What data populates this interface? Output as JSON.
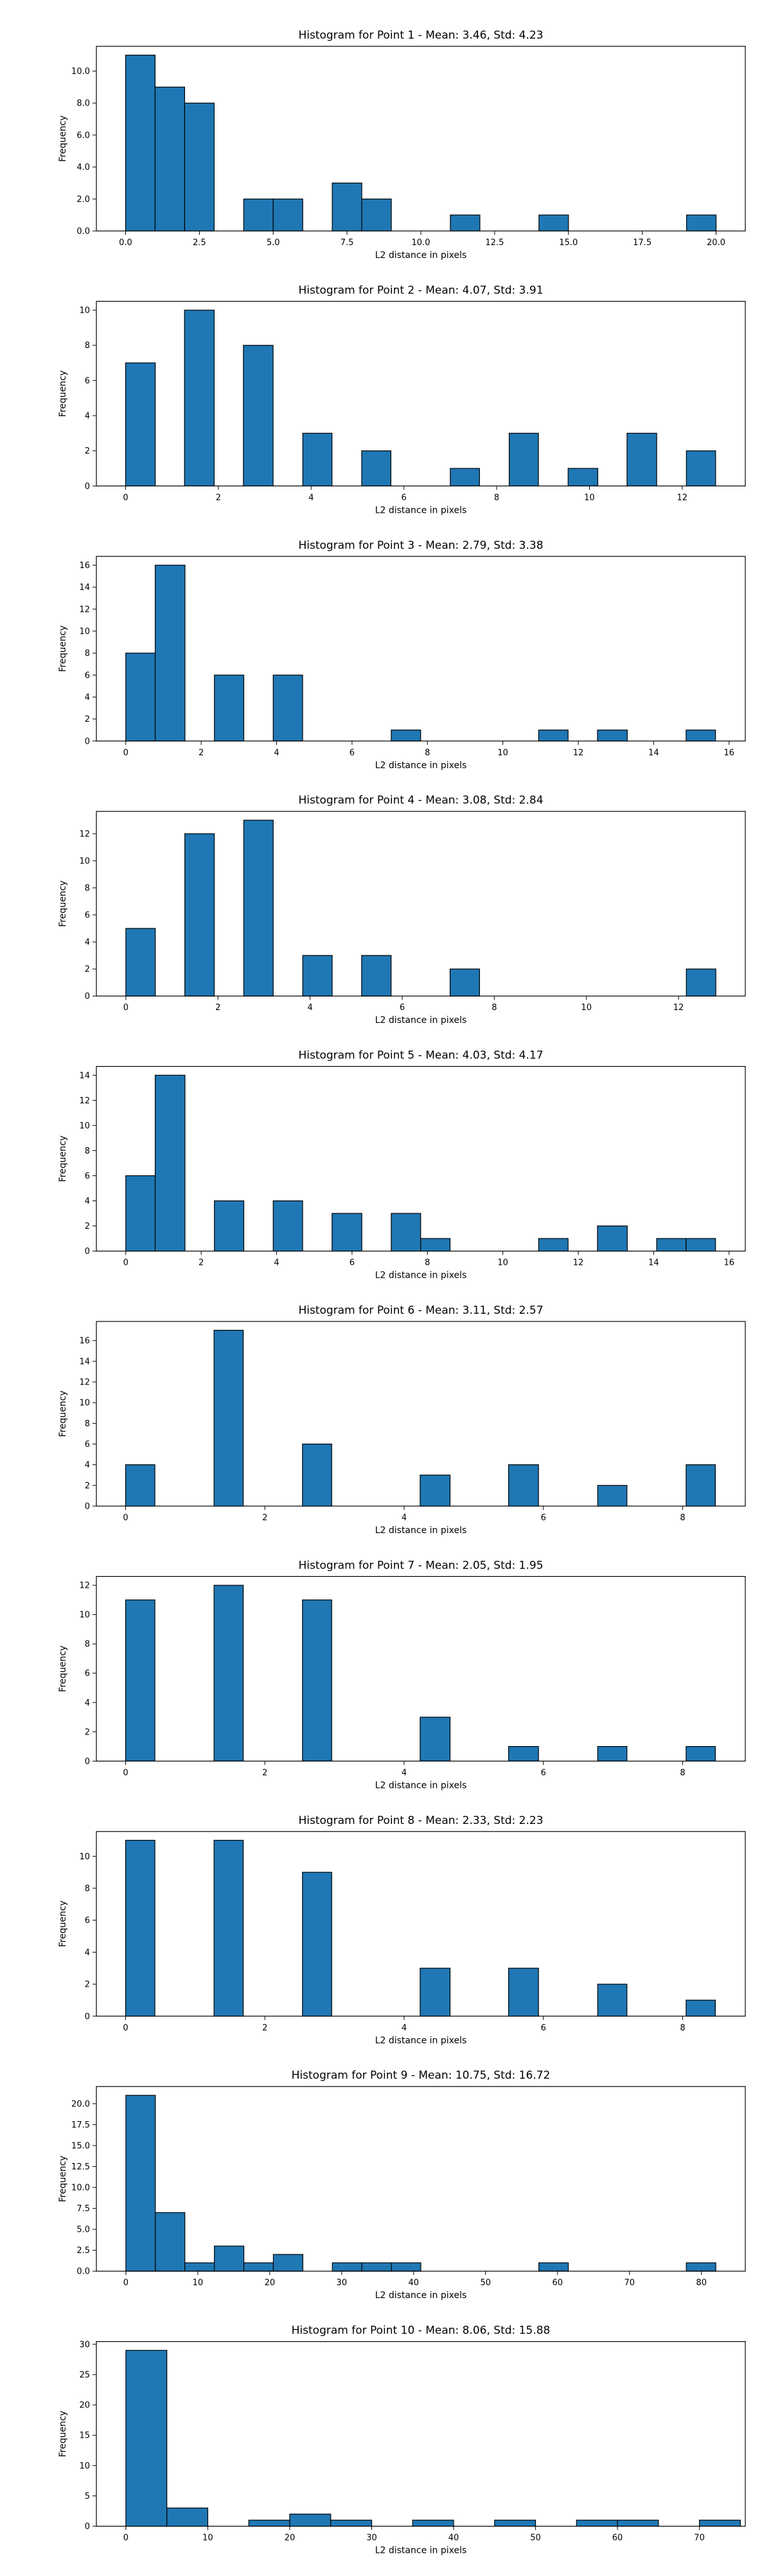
{
  "chart_data": [
    {
      "type": "bar",
      "title": "Histogram for Point 1 - Mean: 3.46, Std: 4.23",
      "xlabel": "L2 distance in pixels",
      "ylabel": "Frequency",
      "xlim": [
        -0.99,
        20.99
      ],
      "ylim": [
        0,
        11.55
      ],
      "xticks": [
        0,
        2.5,
        5,
        7.5,
        10,
        12.5,
        15,
        17.5,
        20
      ],
      "xtick_labels": [
        "0.0",
        "2.5",
        "5.0",
        "7.5",
        "10.0",
        "12.5",
        "15.0",
        "17.5",
        "20.0"
      ],
      "yticks": [
        0,
        2,
        4,
        6,
        8,
        10
      ],
      "yfrac": 1,
      "bins": [
        {
          "x0": 0.0,
          "x1": 1.0,
          "count": 11
        },
        {
          "x0": 1.0,
          "x1": 2.0,
          "count": 9
        },
        {
          "x0": 2.0,
          "x1": 3.0,
          "count": 8
        },
        {
          "x0": 4.0,
          "x1": 5.0,
          "count": 2
        },
        {
          "x0": 5.0,
          "x1": 6.0,
          "count": 2
        },
        {
          "x0": 7.0,
          "x1": 8.0,
          "count": 3
        },
        {
          "x0": 8.0,
          "x1": 9.0,
          "count": 2
        },
        {
          "x0": 11.0,
          "x1": 12.0,
          "count": 1
        },
        {
          "x0": 14.0,
          "x1": 15.0,
          "count": 1
        },
        {
          "x0": 19.0,
          "x1": 20.0,
          "count": 1
        }
      ]
    },
    {
      "type": "bar",
      "title": "Histogram for Point 2 - Mean: 4.07, Std: 3.91",
      "xlabel": "L2 distance in pixels",
      "ylabel": "Frequency",
      "xlim": [
        -0.63,
        13.36
      ],
      "ylim": [
        0,
        10.5
      ],
      "xticks": [
        0,
        2,
        4,
        6,
        8,
        10,
        12
      ],
      "xtick_labels": [
        "0",
        "2",
        "4",
        "6",
        "8",
        "10",
        "12"
      ],
      "yticks": [
        0,
        2,
        4,
        6,
        8,
        10
      ],
      "yfrac": 0,
      "bins": [
        {
          "x0": 0.0,
          "x1": 0.64,
          "count": 7
        },
        {
          "x0": 1.27,
          "x1": 1.91,
          "count": 10
        },
        {
          "x0": 2.54,
          "x1": 3.18,
          "count": 8
        },
        {
          "x0": 3.82,
          "x1": 4.45,
          "count": 3
        },
        {
          "x0": 5.09,
          "x1": 5.72,
          "count": 2
        },
        {
          "x0": 7.0,
          "x1": 7.63,
          "count": 1
        },
        {
          "x0": 8.27,
          "x1": 8.9,
          "count": 3
        },
        {
          "x0": 9.54,
          "x1": 10.18,
          "count": 1
        },
        {
          "x0": 10.81,
          "x1": 11.45,
          "count": 3
        },
        {
          "x0": 12.09,
          "x1": 12.72,
          "count": 2
        }
      ]
    },
    {
      "type": "bar",
      "title": "Histogram for Point 3 - Mean: 2.79, Std: 3.38",
      "xlabel": "L2 distance in pixels",
      "ylabel": "Frequency",
      "xlim": [
        -0.78,
        16.43
      ],
      "ylim": [
        0,
        16.8
      ],
      "xticks": [
        0,
        2,
        4,
        6,
        8,
        10,
        12,
        14,
        16
      ],
      "xtick_labels": [
        "0",
        "2",
        "4",
        "6",
        "8",
        "10",
        "12",
        "14",
        "16"
      ],
      "yticks": [
        0,
        2,
        4,
        6,
        8,
        10,
        12,
        14,
        16
      ],
      "yfrac": 0,
      "bins": [
        {
          "x0": 0.0,
          "x1": 0.78,
          "count": 8
        },
        {
          "x0": 0.78,
          "x1": 1.57,
          "count": 16
        },
        {
          "x0": 2.35,
          "x1": 3.13,
          "count": 6
        },
        {
          "x0": 3.91,
          "x1": 4.69,
          "count": 6
        },
        {
          "x0": 7.04,
          "x1": 7.82,
          "count": 1
        },
        {
          "x0": 10.95,
          "x1": 11.73,
          "count": 1
        },
        {
          "x0": 12.51,
          "x1": 13.3,
          "count": 1
        },
        {
          "x0": 14.86,
          "x1": 15.64,
          "count": 1
        }
      ]
    },
    {
      "type": "bar",
      "title": "Histogram for Point 4 - Mean: 3.08, Std: 2.84",
      "xlabel": "L2 distance in pixels",
      "ylabel": "Frequency",
      "xlim": [
        -0.64,
        13.45
      ],
      "ylim": [
        0,
        13.65
      ],
      "xticks": [
        0,
        2,
        4,
        6,
        8,
        10,
        12
      ],
      "xtick_labels": [
        "0",
        "2",
        "4",
        "6",
        "8",
        "10",
        "12"
      ],
      "yticks": [
        0,
        2,
        4,
        6,
        8,
        10,
        12
      ],
      "yfrac": 0,
      "bins": [
        {
          "x0": 0.0,
          "x1": 0.64,
          "count": 5
        },
        {
          "x0": 1.28,
          "x1": 1.92,
          "count": 12
        },
        {
          "x0": 2.56,
          "x1": 3.2,
          "count": 13
        },
        {
          "x0": 3.84,
          "x1": 4.48,
          "count": 3
        },
        {
          "x0": 5.12,
          "x1": 5.76,
          "count": 3
        },
        {
          "x0": 7.04,
          "x1": 7.68,
          "count": 2
        },
        {
          "x0": 12.17,
          "x1": 12.81,
          "count": 2
        }
      ]
    },
    {
      "type": "bar",
      "title": "Histogram for Point 5 - Mean: 4.03, Std: 4.17",
      "xlabel": "L2 distance in pixels",
      "ylabel": "Frequency",
      "xlim": [
        -0.78,
        16.43
      ],
      "ylim": [
        0,
        14.7
      ],
      "xticks": [
        0,
        2,
        4,
        6,
        8,
        10,
        12,
        14,
        16
      ],
      "xtick_labels": [
        "0",
        "2",
        "4",
        "6",
        "8",
        "10",
        "12",
        "14",
        "16"
      ],
      "yticks": [
        0,
        2,
        4,
        6,
        8,
        10,
        12,
        14
      ],
      "yfrac": 0,
      "bins": [
        {
          "x0": 0.0,
          "x1": 0.78,
          "count": 6
        },
        {
          "x0": 0.78,
          "x1": 1.57,
          "count": 14
        },
        {
          "x0": 2.35,
          "x1": 3.13,
          "count": 4
        },
        {
          "x0": 3.91,
          "x1": 4.69,
          "count": 4
        },
        {
          "x0": 5.47,
          "x1": 6.26,
          "count": 3
        },
        {
          "x0": 7.04,
          "x1": 7.82,
          "count": 3
        },
        {
          "x0": 7.82,
          "x1": 8.6,
          "count": 1
        },
        {
          "x0": 10.95,
          "x1": 11.73,
          "count": 1
        },
        {
          "x0": 12.51,
          "x1": 13.3,
          "count": 2
        },
        {
          "x0": 14.08,
          "x1": 14.86,
          "count": 1
        },
        {
          "x0": 14.86,
          "x1": 15.64,
          "count": 1
        }
      ]
    },
    {
      "type": "bar",
      "title": "Histogram for Point 6 - Mean: 3.11, Std: 2.57",
      "xlabel": "L2 distance in pixels",
      "ylabel": "Frequency",
      "xlim": [
        -0.42,
        8.9
      ],
      "ylim": [
        0,
        17.85
      ],
      "xticks": [
        0,
        2,
        4,
        6,
        8
      ],
      "xtick_labels": [
        "0",
        "2",
        "4",
        "6",
        "8"
      ],
      "yticks": [
        0,
        2,
        4,
        6,
        8,
        10,
        12,
        14,
        16
      ],
      "yfrac": 0,
      "bins": [
        {
          "x0": 0.0,
          "x1": 0.42,
          "count": 4
        },
        {
          "x0": 1.27,
          "x1": 1.69,
          "count": 17
        },
        {
          "x0": 2.54,
          "x1": 2.96,
          "count": 6
        },
        {
          "x0": 4.23,
          "x1": 4.66,
          "count": 3
        },
        {
          "x0": 5.5,
          "x1": 5.93,
          "count": 4
        },
        {
          "x0": 6.78,
          "x1": 7.2,
          "count": 2
        },
        {
          "x0": 8.05,
          "x1": 8.47,
          "count": 4
        }
      ]
    },
    {
      "type": "bar",
      "title": "Histogram for Point 7 - Mean: 2.05, Std: 1.95",
      "xlabel": "L2 distance in pixels",
      "ylabel": "Frequency",
      "xlim": [
        -0.42,
        8.9
      ],
      "ylim": [
        0,
        12.6
      ],
      "xticks": [
        0,
        2,
        4,
        6,
        8
      ],
      "xtick_labels": [
        "0",
        "2",
        "4",
        "6",
        "8"
      ],
      "yticks": [
        0,
        2,
        4,
        6,
        8,
        10,
        12
      ],
      "yfrac": 0,
      "bins": [
        {
          "x0": 0.0,
          "x1": 0.42,
          "count": 11
        },
        {
          "x0": 1.27,
          "x1": 1.69,
          "count": 12
        },
        {
          "x0": 2.54,
          "x1": 2.96,
          "count": 11
        },
        {
          "x0": 4.23,
          "x1": 4.66,
          "count": 3
        },
        {
          "x0": 5.5,
          "x1": 5.93,
          "count": 1
        },
        {
          "x0": 6.78,
          "x1": 7.2,
          "count": 1
        },
        {
          "x0": 8.05,
          "x1": 8.47,
          "count": 1
        }
      ]
    },
    {
      "type": "bar",
      "title": "Histogram for Point 8 - Mean: 2.33, Std: 2.23",
      "xlabel": "L2 distance in pixels",
      "ylabel": "Frequency",
      "xlim": [
        -0.42,
        8.9
      ],
      "ylim": [
        0,
        11.55
      ],
      "xticks": [
        0,
        2,
        4,
        6,
        8
      ],
      "xtick_labels": [
        "0",
        "2",
        "4",
        "6",
        "8"
      ],
      "yticks": [
        0,
        2,
        4,
        6,
        8,
        10
      ],
      "yfrac": 0,
      "bins": [
        {
          "x0": 0.0,
          "x1": 0.42,
          "count": 11
        },
        {
          "x0": 1.27,
          "x1": 1.69,
          "count": 11
        },
        {
          "x0": 2.54,
          "x1": 2.96,
          "count": 9
        },
        {
          "x0": 4.23,
          "x1": 4.66,
          "count": 3
        },
        {
          "x0": 5.5,
          "x1": 5.93,
          "count": 3
        },
        {
          "x0": 6.78,
          "x1": 7.2,
          "count": 2
        },
        {
          "x0": 8.05,
          "x1": 8.47,
          "count": 1
        }
      ]
    },
    {
      "type": "bar",
      "title": "Histogram for Point 9 - Mean: 10.75, Std: 16.72",
      "xlabel": "L2 distance in pixels",
      "ylabel": "Frequency",
      "xlim": [
        -4.1,
        86.1
      ],
      "ylim": [
        0,
        22.05
      ],
      "xticks": [
        0,
        10,
        20,
        30,
        40,
        50,
        60,
        70,
        80
      ],
      "xtick_labels": [
        "0",
        "10",
        "20",
        "30",
        "40",
        "50",
        "60",
        "70",
        "80"
      ],
      "yticks": [
        0,
        2.5,
        5,
        7.5,
        10,
        12.5,
        15,
        17.5,
        20
      ],
      "yfrac": 1,
      "bins": [
        {
          "x0": 0.0,
          "x1": 4.1,
          "count": 21
        },
        {
          "x0": 4.1,
          "x1": 8.2,
          "count": 7
        },
        {
          "x0": 8.2,
          "x1": 12.3,
          "count": 1
        },
        {
          "x0": 12.3,
          "x1": 16.4,
          "count": 3
        },
        {
          "x0": 16.4,
          "x1": 20.5,
          "count": 1
        },
        {
          "x0": 20.5,
          "x1": 24.6,
          "count": 2
        },
        {
          "x0": 28.7,
          "x1": 32.8,
          "count": 1
        },
        {
          "x0": 32.8,
          "x1": 36.9,
          "count": 1
        },
        {
          "x0": 36.9,
          "x1": 41.0,
          "count": 1
        },
        {
          "x0": 57.4,
          "x1": 61.5,
          "count": 1
        },
        {
          "x0": 77.9,
          "x1": 82.0,
          "count": 1
        }
      ]
    },
    {
      "type": "bar",
      "title": "Histogram for Point 10 - Mean: 8.06, Std: 15.88",
      "xlabel": "L2 distance in pixels",
      "ylabel": "Frequency",
      "xlim": [
        -3.6,
        75.6
      ],
      "ylim": [
        0,
        30.45
      ],
      "xticks": [
        0,
        10,
        20,
        30,
        40,
        50,
        60,
        70
      ],
      "xtick_labels": [
        "0",
        "10",
        "20",
        "30",
        "40",
        "50",
        "60",
        "70"
      ],
      "yticks": [
        0,
        5,
        10,
        15,
        20,
        25,
        30
      ],
      "yfrac": 0,
      "bins": [
        {
          "x0": 0.0,
          "x1": 5.0,
          "count": 29
        },
        {
          "x0": 5.0,
          "x1": 10.0,
          "count": 3
        },
        {
          "x0": 15.0,
          "x1": 20.0,
          "count": 1
        },
        {
          "x0": 20.0,
          "x1": 25.0,
          "count": 2
        },
        {
          "x0": 25.0,
          "x1": 30.0,
          "count": 1
        },
        {
          "x0": 35.0,
          "x1": 40.0,
          "count": 1
        },
        {
          "x0": 45.0,
          "x1": 50.0,
          "count": 1
        },
        {
          "x0": 55.0,
          "x1": 60.0,
          "count": 1
        },
        {
          "x0": 60.0,
          "x1": 65.0,
          "count": 1
        },
        {
          "x0": 70.0,
          "x1": 75.0,
          "count": 1
        }
      ]
    }
  ],
  "colors": {
    "bar_fill": "#1f77b4",
    "bar_edge": "#000000",
    "axes": "#000000",
    "background": "#ffffff"
  }
}
